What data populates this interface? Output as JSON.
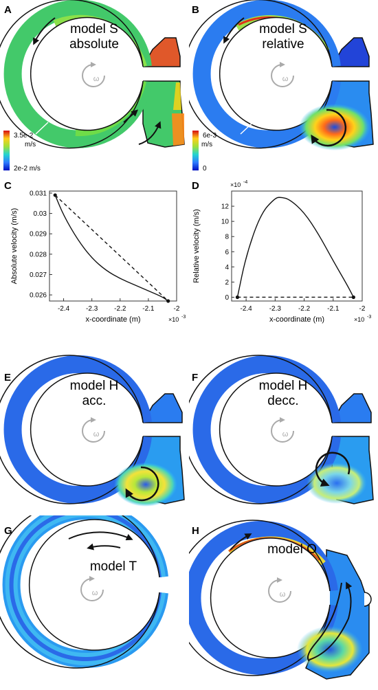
{
  "panels": {
    "A": {
      "letter": "A",
      "title1": "model S",
      "title2": "absolute",
      "omega": "ω",
      "cb_top": "3.5e-2",
      "cb_top_unit": "m/s",
      "cb_bottom": "2e-2 m/s"
    },
    "B": {
      "letter": "B",
      "title1": "model S",
      "title2": "relative",
      "omega": "ω",
      "cb_top": "6e-3",
      "cb_top_unit": "m/s",
      "cb_bottom": "0"
    },
    "C": {
      "letter": "C"
    },
    "D": {
      "letter": "D"
    },
    "E": {
      "letter": "E",
      "title1": "model H",
      "title2": "acc.",
      "omega": "ω"
    },
    "F": {
      "letter": "F",
      "title1": "model H",
      "title2": "decc.",
      "omega": "ω"
    },
    "G": {
      "letter": "G",
      "title1": "model T",
      "omega": "ω"
    },
    "H": {
      "letter": "H",
      "title1": "model O",
      "omega": "ω"
    }
  },
  "chart_data": [
    {
      "type": "line",
      "panel": "C",
      "xlabel": "x-coordinate (m)",
      "ylabel": "Absolute velocity (m/s)",
      "x_multiplier": "×10",
      "x_exponent": "-3",
      "xlim": [
        -2.45,
        -2.0
      ],
      "ylim": [
        0.0257,
        0.0311
      ],
      "xticks": [
        -2.4,
        -2.3,
        -2.2,
        -2.1,
        -2.0
      ],
      "xtick_labels": [
        "-2.4",
        "-2.3",
        "-2.2",
        "-2.1",
        "-2"
      ],
      "yticks": [
        0.026,
        0.027,
        0.028,
        0.029,
        0.03,
        0.031
      ],
      "ytick_labels": [
        "0.026",
        "0.027",
        "0.028",
        "0.029",
        "0.03",
        "0.031"
      ],
      "series": [
        {
          "style": "solid",
          "x": [
            -2.43,
            -2.4,
            -2.35,
            -2.3,
            -2.25,
            -2.2,
            -2.15,
            -2.1,
            -2.05,
            -2.03
          ],
          "y": [
            0.0309,
            0.0299,
            0.0287,
            0.0278,
            0.0272,
            0.0268,
            0.0265,
            0.0262,
            0.0259,
            0.0257
          ]
        },
        {
          "style": "dashed",
          "x": [
            -2.43,
            -2.03
          ],
          "y": [
            0.0309,
            0.0257
          ]
        }
      ],
      "markers": [
        {
          "x": -2.43,
          "y": 0.0309
        },
        {
          "x": -2.03,
          "y": 0.0257
        }
      ]
    },
    {
      "type": "line",
      "panel": "D",
      "xlabel": "x-coordinate (m)",
      "ylabel": "Relative velocity (m/s)",
      "x_multiplier": "×10",
      "x_exponent": "-3",
      "y_multiplier": "×10",
      "y_exponent": "-4",
      "xlim": [
        -2.45,
        -2.0
      ],
      "ylim": [
        -0.5,
        14
      ],
      "xticks": [
        -2.4,
        -2.3,
        -2.2,
        -2.1,
        -2.0
      ],
      "xtick_labels": [
        "-2.4",
        "-2.3",
        "-2.2",
        "-2.1",
        "-2"
      ],
      "yticks": [
        0,
        2,
        4,
        6,
        8,
        10,
        12
      ],
      "ytick_labels": [
        "0",
        "2",
        "4",
        "6",
        "8",
        "10",
        "12"
      ],
      "series": [
        {
          "style": "solid",
          "x": [
            -2.43,
            -2.4,
            -2.35,
            -2.3,
            -2.28,
            -2.25,
            -2.2,
            -2.15,
            -2.1,
            -2.05,
            -2.03
          ],
          "y": [
            0,
            5.5,
            11.0,
            13.1,
            13.2,
            12.9,
            11.2,
            8.3,
            4.8,
            1.5,
            0
          ]
        },
        {
          "style": "dashed",
          "x": [
            -2.43,
            -2.03
          ],
          "y": [
            0,
            0
          ]
        }
      ],
      "markers": [
        {
          "x": -2.43,
          "y": 0
        },
        {
          "x": -2.03,
          "y": 0
        }
      ]
    }
  ]
}
